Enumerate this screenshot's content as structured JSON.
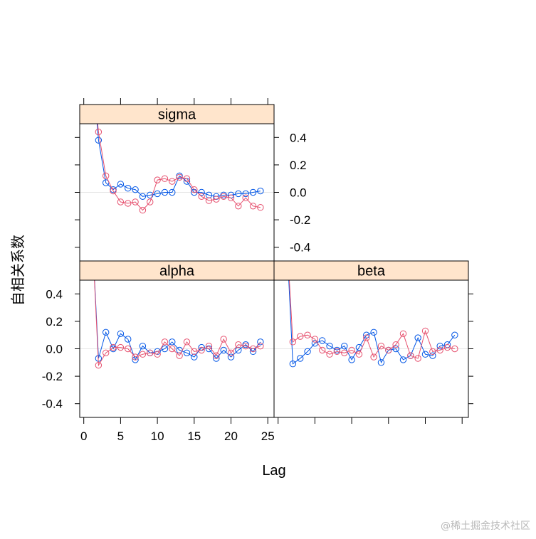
{
  "chart_data": {
    "type": "line",
    "xlabel": "Lag",
    "ylabel": "自相关系数",
    "xlim": [
      0,
      25
    ],
    "ylim": [
      -0.5,
      0.5
    ],
    "x_ticks": [
      0,
      5,
      10,
      15,
      20,
      25
    ],
    "y_ticks": [
      -0.4,
      -0.2,
      0.0,
      0.2,
      0.4
    ],
    "x_tick_labels": [
      "0",
      "5",
      "10",
      "15",
      "20",
      "25"
    ],
    "y_tick_labels": [
      "-0.4",
      "-0.2",
      "0.0",
      "0.2",
      "0.4"
    ],
    "colors": {
      "chain1": "#0055e6",
      "chain2": "#e6506e",
      "strip": "#ffe5cc"
    },
    "panels": [
      {
        "title": "sigma",
        "series": [
          {
            "color": "#0055e6",
            "x": [
              1,
              2,
              3,
              4,
              5,
              6,
              7,
              8,
              9,
              10,
              11,
              12,
              13,
              14,
              15,
              16,
              17,
              18,
              19,
              20,
              21,
              22,
              23,
              24
            ],
            "y": [
              1.0,
              0.38,
              0.07,
              0.02,
              0.06,
              0.03,
              0.02,
              -0.03,
              -0.02,
              -0.01,
              0.0,
              0.0,
              0.12,
              0.08,
              0.0,
              0.0,
              -0.02,
              -0.03,
              -0.02,
              -0.02,
              -0.01,
              -0.01,
              0.0,
              0.01
            ]
          },
          {
            "color": "#e6506e",
            "x": [
              1,
              2,
              3,
              4,
              5,
              6,
              7,
              8,
              9,
              10,
              11,
              12,
              13,
              14,
              15,
              16,
              17,
              18,
              19,
              20,
              21,
              22,
              23,
              24
            ],
            "y": [
              1.0,
              0.44,
              0.12,
              0.01,
              -0.07,
              -0.08,
              -0.07,
              -0.13,
              -0.07,
              0.09,
              0.1,
              0.08,
              0.11,
              0.1,
              0.02,
              -0.03,
              -0.06,
              -0.05,
              -0.03,
              -0.04,
              -0.1,
              -0.04,
              -0.1,
              -0.11
            ]
          }
        ]
      },
      {
        "title": "alpha",
        "series": [
          {
            "color": "#0055e6",
            "x": [
              1,
              2,
              3,
              4,
              5,
              6,
              7,
              8,
              9,
              10,
              11,
              12,
              13,
              14,
              15,
              16,
              17,
              18,
              19,
              20,
              21,
              22,
              23,
              24
            ],
            "y": [
              1.0,
              -0.07,
              0.12,
              0.0,
              0.11,
              0.07,
              -0.08,
              0.02,
              -0.03,
              -0.02,
              0.0,
              0.05,
              -0.01,
              -0.03,
              -0.06,
              0.01,
              0.0,
              -0.07,
              -0.01,
              -0.06,
              -0.01,
              0.03,
              -0.02,
              0.05
            ]
          },
          {
            "color": "#e6506e",
            "x": [
              1,
              2,
              3,
              4,
              5,
              6,
              7,
              8,
              9,
              10,
              11,
              12,
              13,
              14,
              15,
              16,
              17,
              18,
              19,
              20,
              21,
              22,
              23,
              24
            ],
            "y": [
              1.0,
              -0.12,
              -0.03,
              0.01,
              0.01,
              0.0,
              -0.06,
              -0.04,
              -0.03,
              -0.04,
              0.05,
              0.0,
              -0.05,
              0.05,
              -0.02,
              -0.01,
              0.02,
              -0.05,
              0.07,
              -0.03,
              0.03,
              0.02,
              0.0,
              0.02
            ]
          }
        ]
      },
      {
        "title": "beta",
        "series": [
          {
            "color": "#0055e6",
            "x": [
              1,
              2,
              3,
              4,
              5,
              6,
              7,
              8,
              9,
              10,
              11,
              12,
              13,
              14,
              15,
              16,
              17,
              18,
              19,
              20,
              21,
              22,
              23,
              24
            ],
            "y": [
              1.0,
              -0.11,
              -0.07,
              -0.02,
              0.04,
              0.06,
              0.02,
              -0.01,
              0.02,
              -0.08,
              0.01,
              0.1,
              0.12,
              -0.1,
              -0.01,
              0.0,
              -0.08,
              -0.05,
              0.08,
              -0.04,
              -0.05,
              0.02,
              0.03,
              0.1
            ]
          },
          {
            "color": "#e6506e",
            "x": [
              1,
              2,
              3,
              4,
              5,
              6,
              7,
              8,
              9,
              10,
              11,
              12,
              13,
              14,
              15,
              16,
              17,
              18,
              19,
              20,
              21,
              22,
              23,
              24
            ],
            "y": [
              1.0,
              0.05,
              0.09,
              0.1,
              0.07,
              -0.01,
              -0.04,
              -0.02,
              -0.03,
              -0.01,
              -0.04,
              0.08,
              -0.06,
              0.02,
              -0.01,
              0.03,
              0.11,
              -0.05,
              -0.07,
              0.13,
              -0.02,
              -0.01,
              0.01,
              0.0
            ]
          }
        ]
      }
    ]
  },
  "watermark": "@稀土掘金技术社区"
}
